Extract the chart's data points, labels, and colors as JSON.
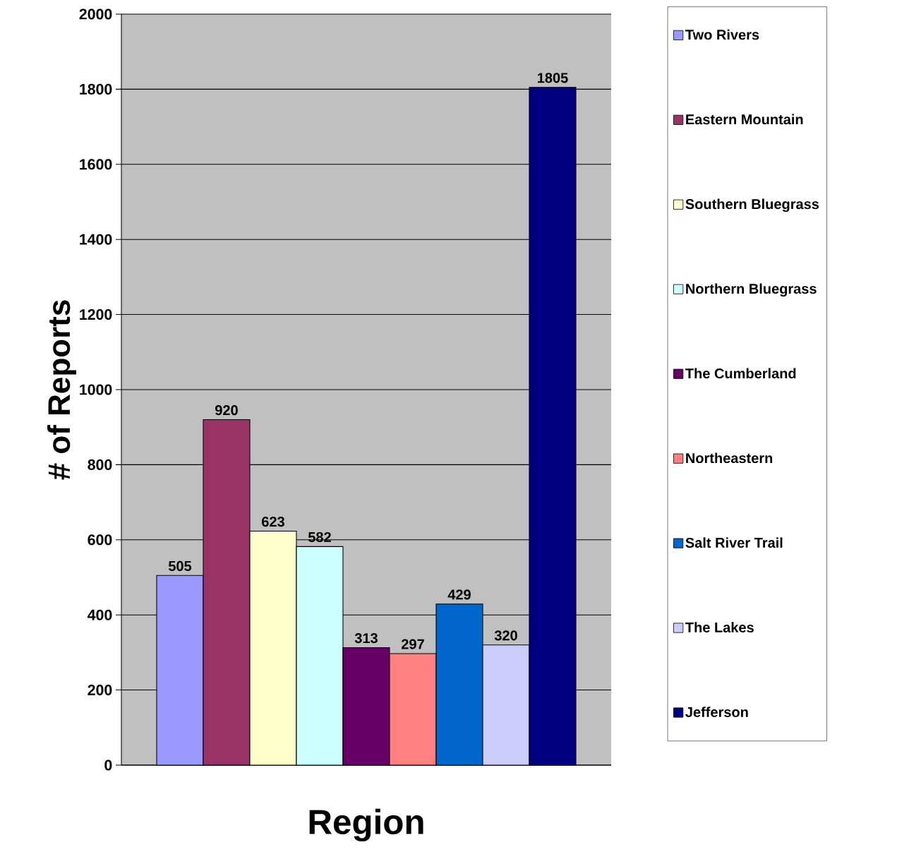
{
  "chart_data": {
    "type": "bar",
    "xlabel": "Region",
    "ylabel": "# of Reports",
    "categories": [
      null
    ],
    "series": [
      {
        "name": "Two Rivers",
        "color": "#9999ff",
        "values": [
          505
        ]
      },
      {
        "name": "Eastern Mountain",
        "color": "#993366",
        "values": [
          920
        ]
      },
      {
        "name": "Southern Bluegrass",
        "color": "#ffffcc",
        "values": [
          623
        ]
      },
      {
        "name": "Northern Bluegrass",
        "color": "#ccffff",
        "values": [
          582
        ]
      },
      {
        "name": "The Cumberland",
        "color": "#660066",
        "values": [
          313
        ]
      },
      {
        "name": "Northeastern",
        "color": "#ff8080",
        "values": [
          297
        ]
      },
      {
        "name": "Salt River Trail",
        "color": "#0066cc",
        "values": [
          429
        ]
      },
      {
        "name": "The Lakes",
        "color": "#ccccff",
        "values": [
          320
        ]
      },
      {
        "name": "Jefferson",
        "color": "#000080",
        "values": [
          1805
        ]
      }
    ],
    "ylim": [
      0,
      2000
    ],
    "yticks": [
      0,
      200,
      400,
      600,
      800,
      1000,
      1200,
      1400,
      1600,
      1800,
      2000
    ],
    "grid": "y",
    "legend": "right",
    "data_labels": true
  }
}
